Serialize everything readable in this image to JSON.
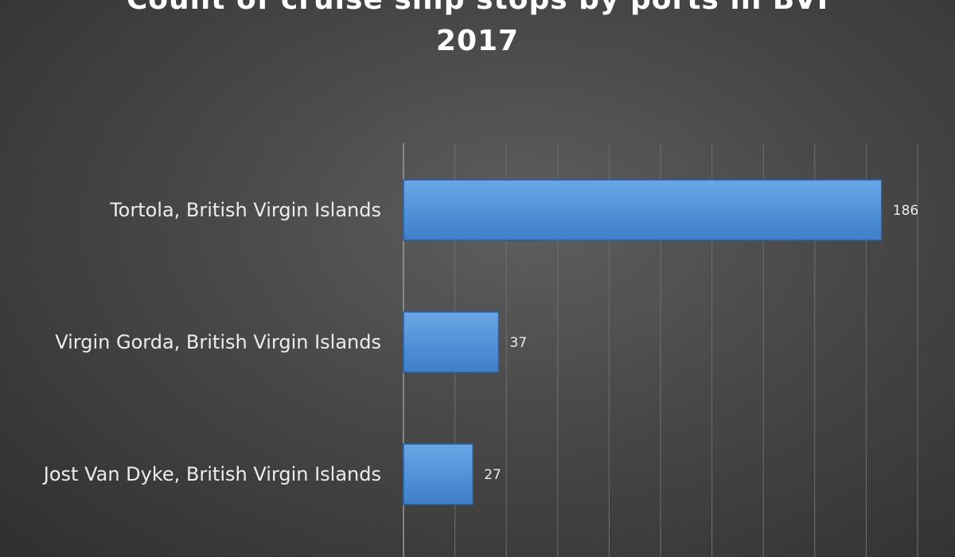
{
  "chart_data": {
    "type": "bar",
    "orientation": "horizontal",
    "title_lines": [
      "Count of cruise ship stops by ports in BVI",
      "2017"
    ],
    "categories": [
      "Tortola, British Virgin Islands",
      "Virgin Gorda, British Virgin Islands",
      "Jost Van Dyke, British Virgin Islands"
    ],
    "values": [
      186,
      37,
      27
    ],
    "data_labels": [
      "186",
      "37",
      "27"
    ],
    "xlim": [
      0,
      200
    ],
    "x_grid_step": 20,
    "grid": true,
    "legend": "none",
    "bar_color": "#4f90d8",
    "bar_edge_color": "#2b5d9c"
  }
}
